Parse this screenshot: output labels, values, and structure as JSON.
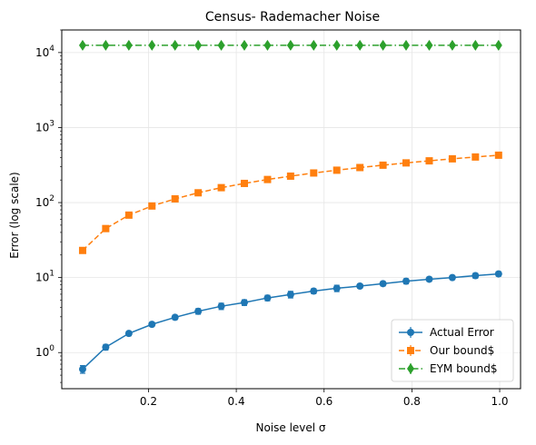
{
  "chart_data": {
    "type": "line",
    "title": "Census- Rademacher Noise",
    "xlabel": "Noise level σ",
    "ylabel": "Error  (log scale)",
    "x": [
      0.05,
      0.1026,
      0.1553,
      0.2079,
      0.2605,
      0.3132,
      0.3658,
      0.4184,
      0.4711,
      0.5237,
      0.5763,
      0.6289,
      0.6816,
      0.7342,
      0.7868,
      0.8395,
      0.8921,
      0.9447,
      0.9974
    ],
    "xticks": [
      0.2,
      0.4,
      0.6,
      0.8,
      1.0
    ],
    "xtick_labels": [
      "0.2",
      "0.4",
      "0.6",
      "0.8",
      "1.0"
    ],
    "xlim": [
      0.0025,
      1.0475
    ],
    "yscale": "log",
    "ylim": [
      0.33,
      20000
    ],
    "yticks": [
      1,
      10,
      100,
      1000,
      10000
    ],
    "ytick_labels": [
      "10^0",
      "10^1",
      "10^2",
      "10^3",
      "10^4"
    ],
    "grid": true,
    "legend_position": "bottom-right",
    "series": [
      {
        "name": "Actual Error",
        "color": "#1f77b4",
        "marker": "circle",
        "linestyle": "solid",
        "values": [
          0.6,
          1.18,
          1.8,
          2.38,
          2.95,
          3.55,
          4.15,
          4.65,
          5.35,
          5.95,
          6.6,
          7.2,
          7.7,
          8.3,
          8.95,
          9.5,
          10.0,
          10.6,
          11.2
        ],
        "errors": [
          0.07,
          0.1,
          0.12,
          0.15,
          0.2,
          0.3,
          0.4,
          0.4,
          0.45,
          0.6,
          0.5,
          0.7,
          0.5,
          0.55,
          0.7,
          0.6,
          0.6,
          0.8,
          0.8
        ]
      },
      {
        "name": "Our bound$",
        "color": "#ff7f0e",
        "marker": "square",
        "linestyle": "dashed",
        "values": [
          23,
          45,
          68,
          90,
          112,
          135,
          158,
          180,
          203,
          225,
          248,
          270,
          293,
          315,
          338,
          360,
          383,
          405,
          428
        ],
        "errors": [
          1,
          2,
          3,
          3,
          4,
          4,
          5,
          5,
          6,
          6,
          7,
          7,
          8,
          8,
          9,
          9,
          10,
          10,
          11
        ]
      },
      {
        "name": "EYM bound$",
        "color": "#2ca02c",
        "marker": "diamond",
        "linestyle": "dashdot",
        "values": [
          12500,
          12500,
          12500,
          12500,
          12500,
          12500,
          12500,
          12500,
          12500,
          12500,
          12500,
          12500,
          12500,
          12500,
          12500,
          12500,
          12500,
          12500,
          12500
        ],
        "errors": [
          0,
          0,
          0,
          0,
          0,
          0,
          0,
          0,
          0,
          0,
          0,
          0,
          0,
          0,
          0,
          0,
          0,
          0,
          0
        ]
      }
    ]
  }
}
